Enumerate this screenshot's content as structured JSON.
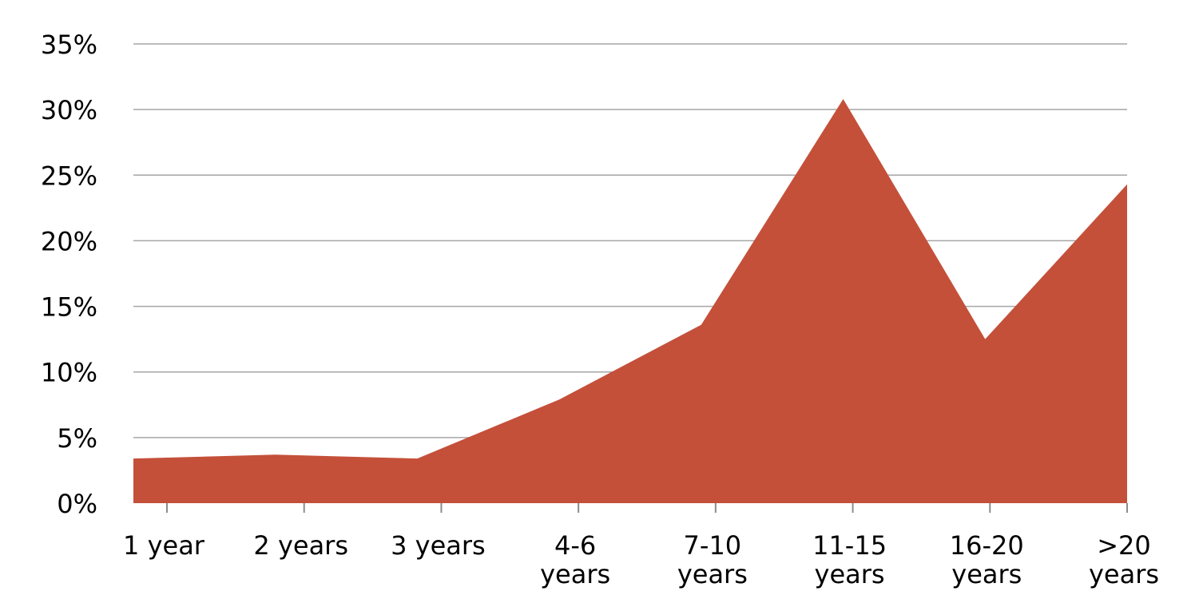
{
  "chart_data": {
    "type": "area",
    "categories": [
      "1 year",
      "2 years",
      "3 years",
      "4-6 years",
      "7-10 years",
      "11-15 years",
      "16-20 years",
      ">20 years"
    ],
    "category_label_lines": [
      [
        "1 year"
      ],
      [
        "2 years"
      ],
      [
        "3 years"
      ],
      [
        "4-6",
        "years"
      ],
      [
        "7-10",
        "years"
      ],
      [
        "11-15",
        "years"
      ],
      [
        "16-20",
        "years"
      ],
      [
        ">20",
        "years"
      ]
    ],
    "series": [
      {
        "values": [
          3.4,
          3.7,
          3.4,
          7.9,
          13.6,
          30.8,
          12.5,
          24.3
        ],
        "color": "#c4503a"
      }
    ],
    "ylim": [
      0,
      35
    ],
    "yticks": [
      0,
      5,
      10,
      15,
      20,
      25,
      30,
      35
    ],
    "ytick_labels": [
      "0%",
      "5%",
      "10%",
      "15%",
      "20%",
      "25%",
      "30%",
      "35%"
    ],
    "grid": true,
    "legend": "none",
    "title": "",
    "xlabel": "",
    "ylabel": ""
  }
}
